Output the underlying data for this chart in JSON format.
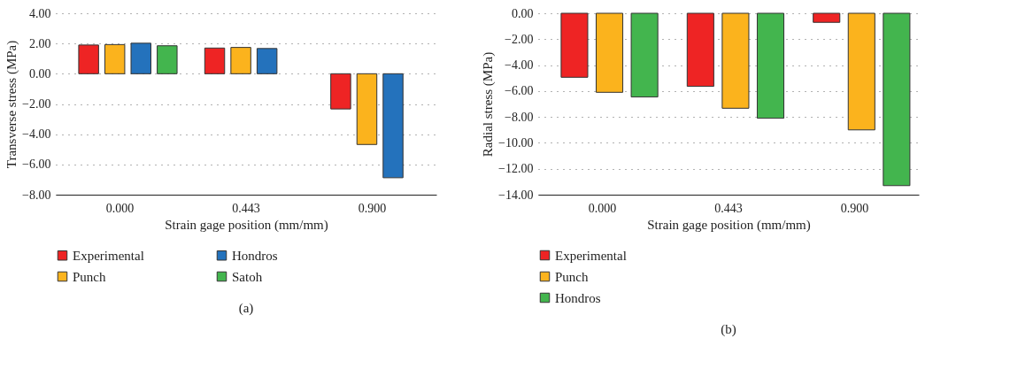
{
  "chart_data": [
    {
      "type": "bar",
      "xlabel": "Strain gage position (mm/mm)",
      "ylabel": "Transverse stress (MPa)",
      "categories": [
        "0.000",
        "0.443",
        "0.900"
      ],
      "series": [
        {
          "name": "Experimental",
          "color": "#ee2424",
          "values": [
            1.9,
            1.7,
            -2.33
          ]
        },
        {
          "name": "Punch",
          "color": "#fbb31d",
          "values": [
            1.93,
            1.74,
            -4.68
          ]
        },
        {
          "name": "Hondros",
          "color": "#2472bc",
          "values": [
            2.02,
            1.67,
            -6.88
          ]
        },
        {
          "name": "Satoh",
          "color": "#43b54e",
          "values": [
            1.85,
            null,
            null
          ]
        }
      ],
      "ylim": [
        -8,
        4
      ],
      "yticks": [
        {
          "value": -8,
          "label": "−8.00"
        },
        {
          "value": -6,
          "label": "−6.00"
        },
        {
          "value": -4,
          "label": "−4.00"
        },
        {
          "value": -2,
          "label": "−2.00"
        },
        {
          "value": 0,
          "label": "0.00"
        },
        {
          "value": 2,
          "label": "2.00"
        },
        {
          "value": 4,
          "label": "4.00"
        }
      ],
      "grid": "y",
      "legend": "bottom",
      "annotations": [
        "(a)"
      ]
    },
    {
      "type": "bar",
      "xlabel": "Strain gage position (mm/mm)",
      "ylabel": "Radial stress (MPa)",
      "categories": [
        "0.000",
        "0.443",
        "0.900"
      ],
      "series": [
        {
          "name": "Experimental",
          "color": "#ee2424",
          "values": [
            -4.94,
            -5.64,
            -0.7
          ]
        },
        {
          "name": "Punch",
          "color": "#fbb31d",
          "values": [
            -6.1,
            -7.33,
            -9.0
          ]
        },
        {
          "name": "Hondros",
          "color": "#43b54e",
          "values": [
            -6.46,
            -8.1,
            -13.3
          ]
        }
      ],
      "ylim": [
        -14,
        0
      ],
      "yticks": [
        {
          "value": -14,
          "label": "−14.00"
        },
        {
          "value": -12,
          "label": "−12.00"
        },
        {
          "value": -10,
          "label": "−10.00"
        },
        {
          "value": -8,
          "label": "−8.00"
        },
        {
          "value": -6,
          "label": "−6.00"
        },
        {
          "value": -4,
          "label": "−4.00"
        },
        {
          "value": -2,
          "label": "−2.00"
        },
        {
          "value": 0,
          "label": "0.00"
        }
      ],
      "grid": "y",
      "legend": "bottom",
      "annotations": [
        "(b)"
      ]
    }
  ]
}
